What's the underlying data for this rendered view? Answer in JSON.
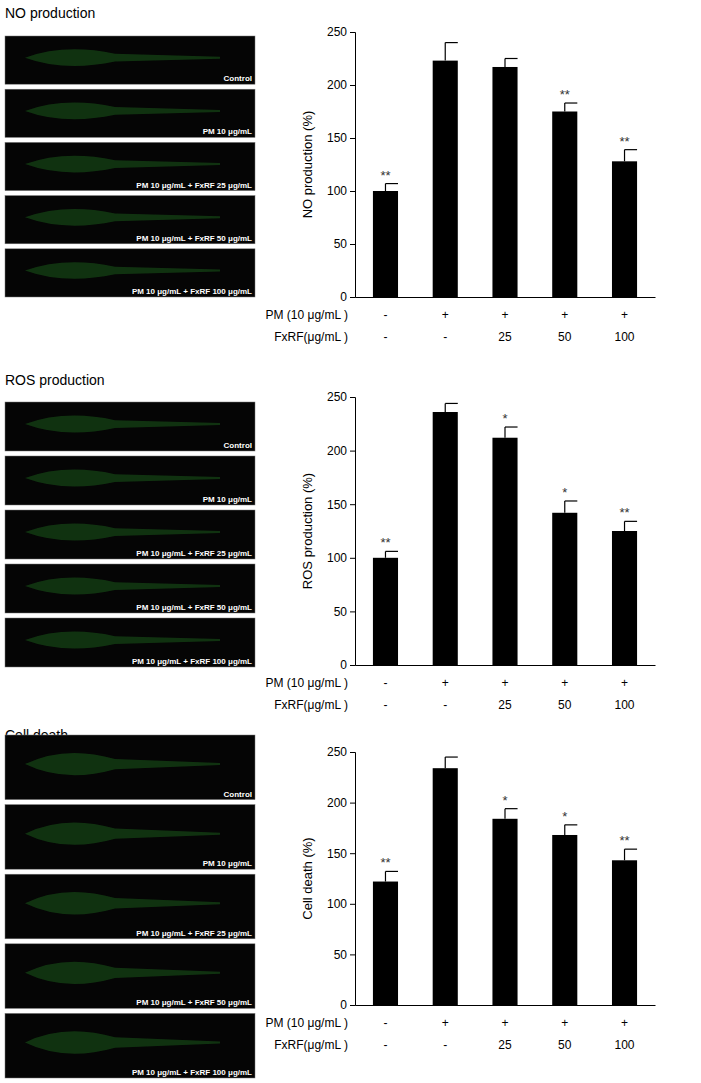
{
  "chart_data": [
    {
      "type": "bar",
      "title": "NO production",
      "y_label": "NO production (%)",
      "categories": [
        null,
        null,
        null,
        null,
        null
      ],
      "values": [
        100,
        223,
        217,
        175,
        128
      ],
      "errors": [
        7,
        17,
        8,
        8,
        11
      ],
      "significance": [
        "**",
        null,
        null,
        "**",
        "**"
      ],
      "color": "#000000",
      "ylim": [
        0,
        250
      ],
      "yticks": [
        0,
        50,
        100,
        150,
        200,
        250
      ],
      "x_table": [
        {
          "label": "PM (10 μg/mL )",
          "cells": [
            "-",
            "+",
            "+",
            "+",
            "+"
          ]
        },
        {
          "label": "FxRF(μg/mL )",
          "cells": [
            "-",
            "-",
            "25",
            "50",
            "100"
          ]
        }
      ],
      "image_labels": [
        "Control",
        "PM 10 μg/mL",
        "PM 10 μg/mL + FxRF 25 μg/mL",
        "PM 10 μg/mL + FxRF 50 μg/mL",
        "PM 10 μg/mL + FxRF 100 μg/mL"
      ]
    },
    {
      "type": "bar",
      "title": "ROS production",
      "y_label": "ROS production (%)",
      "categories": [
        null,
        null,
        null,
        null,
        null
      ],
      "values": [
        100,
        236,
        212,
        142,
        125
      ],
      "errors": [
        6,
        8,
        10,
        11,
        9
      ],
      "significance": [
        "**",
        null,
        "*",
        "*",
        "**"
      ],
      "color": "#000000",
      "ylim": [
        0,
        250
      ],
      "yticks": [
        0,
        50,
        100,
        150,
        200,
        250
      ],
      "x_table": [
        {
          "label": "PM (10 μg/mL )",
          "cells": [
            "-",
            "+",
            "+",
            "+",
            "+"
          ]
        },
        {
          "label": "FxRF(μg/mL )",
          "cells": [
            "-",
            "-",
            "25",
            "50",
            "100"
          ]
        }
      ],
      "image_labels": [
        "Control",
        "PM 10 μg/mL",
        "PM 10 μg/mL + FxRF 25 μg/mL",
        "PM 10 μg/mL + FxRF 50 μg/mL",
        "PM 10 μg/mL + FxRF 100 μg/mL"
      ]
    },
    {
      "type": "bar",
      "title": "Cell death",
      "y_label": "Cell death (%)",
      "categories": [
        null,
        null,
        null,
        null,
        null
      ],
      "values": [
        122,
        234,
        184,
        168,
        143
      ],
      "errors": [
        10,
        11,
        10,
        10,
        11
      ],
      "significance": [
        "**",
        null,
        "*",
        "*",
        "**"
      ],
      "color": "#000000",
      "ylim": [
        0,
        250
      ],
      "yticks": [
        0,
        50,
        100,
        150,
        200,
        250
      ],
      "x_table": [
        {
          "label": "PM (10 μg/mL )",
          "cells": [
            "-",
            "+",
            "+",
            "+",
            "+"
          ]
        },
        {
          "label": "FxRF(μg/mL )",
          "cells": [
            "-",
            "-",
            "25",
            "50",
            "100"
          ]
        }
      ],
      "image_labels": [
        "Control",
        "PM 10 μg/mL",
        "PM 10 μg/mL + FxRF 25 μg/mL",
        "PM 10 μg/mL + FxRF 50 μg/mL",
        "PM 10 μg/mL + FxRF 100 μg/mL"
      ]
    }
  ]
}
